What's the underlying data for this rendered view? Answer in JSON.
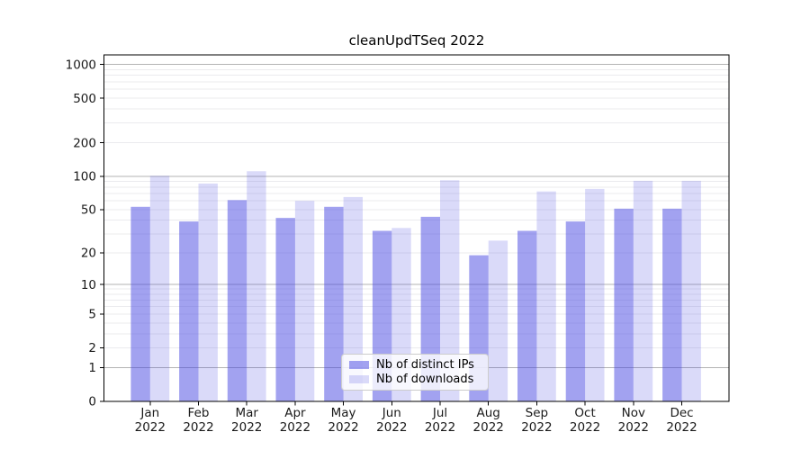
{
  "chart_data": {
    "type": "bar",
    "title": "cleanUpdTSeq 2022",
    "categories": [
      "Jan",
      "Feb",
      "Mar",
      "Apr",
      "May",
      "Jun",
      "Jul",
      "Aug",
      "Sep",
      "Oct",
      "Nov",
      "Dec"
    ],
    "year": "2022",
    "series": [
      {
        "name": "Nb of distinct IPs",
        "color": "rgba(70,70,225,0.5)",
        "values": [
          53,
          39,
          61,
          42,
          53,
          32,
          43,
          19,
          32,
          39,
          51,
          51
        ]
      },
      {
        "name": "Nb of downloads",
        "color": "rgba(70,70,225,0.2)",
        "values": [
          101,
          86,
          111,
          60,
          65,
          34,
          92,
          26,
          73,
          77,
          91,
          91
        ]
      }
    ],
    "xlabel": "",
    "ylabel": "",
    "y_scale": "log1p",
    "ylim": [
      0,
      1000
    ],
    "y_ticks": [
      0,
      1,
      2,
      5,
      10,
      20,
      50,
      100,
      200,
      500,
      1000
    ],
    "grid": true,
    "legend_position": "bottom-center",
    "colors": {
      "grid_major": "#b3b3b3",
      "grid_minor": "#ebebee",
      "axis": "#000000",
      "tick_label": "#1a1a1a",
      "title": "#000000"
    }
  }
}
